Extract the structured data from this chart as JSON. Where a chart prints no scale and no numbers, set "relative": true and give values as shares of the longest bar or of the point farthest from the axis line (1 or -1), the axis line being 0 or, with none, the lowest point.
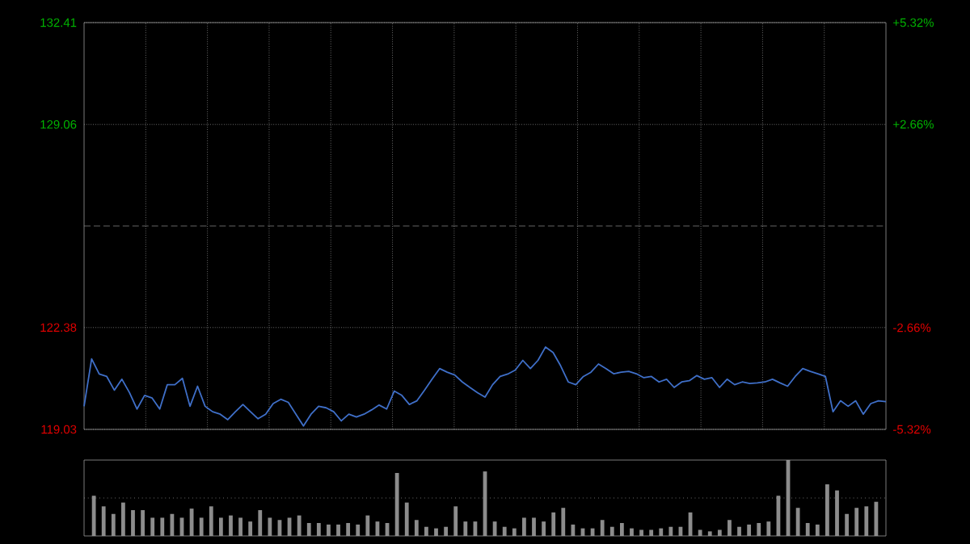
{
  "chart_data": [
    {
      "type": "line",
      "categories": [
        null,
        null,
        null,
        null,
        null,
        null,
        null,
        null,
        null,
        null,
        null,
        null,
        null,
        null,
        null,
        null,
        null,
        null,
        null,
        null,
        null,
        null,
        null,
        null,
        null,
        null,
        null,
        null,
        null,
        null,
        null,
        null,
        null,
        null,
        null,
        null,
        null,
        null,
        null,
        null,
        null,
        null,
        null,
        null,
        null,
        null,
        null,
        null,
        null,
        null,
        null,
        null,
        null,
        null,
        null,
        null,
        null,
        null,
        null,
        null,
        null,
        null,
        null,
        null,
        null,
        null,
        null,
        null,
        null,
        null,
        null,
        null,
        null,
        null,
        null,
        null,
        null,
        null,
        null,
        null,
        null,
        null,
        null,
        null,
        null,
        null,
        null,
        null,
        null,
        null,
        null,
        null,
        null,
        null,
        null,
        null,
        null,
        null,
        null,
        null,
        null,
        null,
        null,
        null,
        null,
        null,
        null
      ],
      "series": [
        {
          "color": "#3f6fc8",
          "values": [
            119.79,
            121.35,
            120.85,
            120.77,
            120.32,
            120.68,
            120.24,
            119.7,
            120.15,
            120.06,
            119.7,
            120.5,
            120.5,
            120.71,
            119.79,
            120.45,
            119.79,
            119.61,
            119.53,
            119.35,
            119.61,
            119.85,
            119.61,
            119.38,
            119.53,
            119.88,
            120.02,
            119.92,
            119.53,
            119.14,
            119.53,
            119.79,
            119.74,
            119.61,
            119.31,
            119.53,
            119.44,
            119.53,
            119.67,
            119.83,
            119.7,
            120.29,
            120.15,
            119.85,
            119.97,
            120.32,
            120.68,
            121.03,
            120.91,
            120.82,
            120.59,
            120.41,
            120.24,
            120.09,
            120.5,
            120.77,
            120.85,
            120.98,
            121.3,
            121.03,
            121.3,
            121.74,
            121.56,
            121.12,
            120.59,
            120.5,
            120.77,
            120.91,
            121.18,
            121.03,
            120.86,
            120.91,
            120.94,
            120.86,
            120.73,
            120.77,
            120.59,
            120.68,
            120.41,
            120.59,
            120.63,
            120.8,
            120.68,
            120.73,
            120.41,
            120.68,
            120.5,
            120.59,
            120.54,
            120.56,
            120.59,
            120.68,
            120.56,
            120.45,
            120.77,
            121.03,
            120.94,
            120.86,
            120.77,
            119.61,
            119.97,
            119.79,
            119.97,
            119.53,
            119.88,
            119.97,
            119.94
          ]
        }
      ],
      "ylim": [
        119.03,
        132.41
      ],
      "yticks": [
        119.03,
        122.38,
        129.06,
        132.41
      ],
      "y2lim": [
        -5.32,
        5.32
      ],
      "y2ticks": [
        {
          "value": -5.32,
          "label": "-5.32%"
        },
        {
          "value": -2.66,
          "label": "-2.66%"
        },
        {
          "value": 2.66,
          "label": "+2.66%"
        },
        {
          "value": 5.32,
          "label": "+5.32%"
        }
      ],
      "ref_lines": [
        {
          "axis": "y",
          "value": 125.72,
          "color": "#808080",
          "line_style": "dashed"
        }
      ],
      "grid": true,
      "tick_labels": "y"
    },
    {
      "type": "bar",
      "relative": true,
      "color": "#8c8c8c",
      "categories": [
        null,
        null,
        null,
        null,
        null,
        null,
        null,
        null,
        null,
        null,
        null,
        null,
        null,
        null,
        null,
        null,
        null,
        null,
        null,
        null,
        null,
        null,
        null,
        null,
        null,
        null,
        null,
        null,
        null,
        null,
        null,
        null,
        null,
        null,
        null,
        null,
        null,
        null,
        null,
        null,
        null,
        null,
        null,
        null,
        null,
        null,
        null,
        null,
        null,
        null,
        null,
        null,
        null,
        null,
        null,
        null,
        null,
        null,
        null,
        null,
        null,
        null,
        null,
        null,
        null,
        null,
        null,
        null,
        null,
        null,
        null,
        null,
        null,
        null,
        null,
        null,
        null,
        null,
        null,
        null,
        null
      ],
      "values": [
        0.53,
        0.39,
        0.29,
        0.44,
        0.34,
        0.34,
        0.24,
        0.24,
        0.29,
        0.24,
        0.36,
        0.24,
        0.39,
        0.24,
        0.27,
        0.24,
        0.19,
        0.34,
        0.24,
        0.21,
        0.24,
        0.27,
        0.17,
        0.17,
        0.15,
        0.15,
        0.17,
        0.15,
        0.27,
        0.19,
        0.17,
        0.83,
        0.44,
        0.21,
        0.12,
        0.1,
        0.12,
        0.39,
        0.19,
        0.19,
        0.85,
        0.19,
        0.12,
        0.1,
        0.24,
        0.24,
        0.19,
        0.31,
        0.37,
        0.15,
        0.1,
        0.1,
        0.21,
        0.12,
        0.17,
        0.1,
        0.08,
        0.08,
        0.1,
        0.12,
        0.12,
        0.31,
        0.08,
        0.06,
        0.08,
        0.21,
        0.12,
        0.15,
        0.17,
        0.19,
        0.53,
        1.0,
        0.37,
        0.17,
        0.15,
        0.68,
        0.6,
        0.29,
        0.37,
        0.39,
        0.45
      ],
      "ref_lines": [
        {
          "axis": "y",
          "value": 0.5,
          "color": "#a6a6a6",
          "line_style": "dotted"
        }
      ],
      "tick_labels": false
    }
  ]
}
